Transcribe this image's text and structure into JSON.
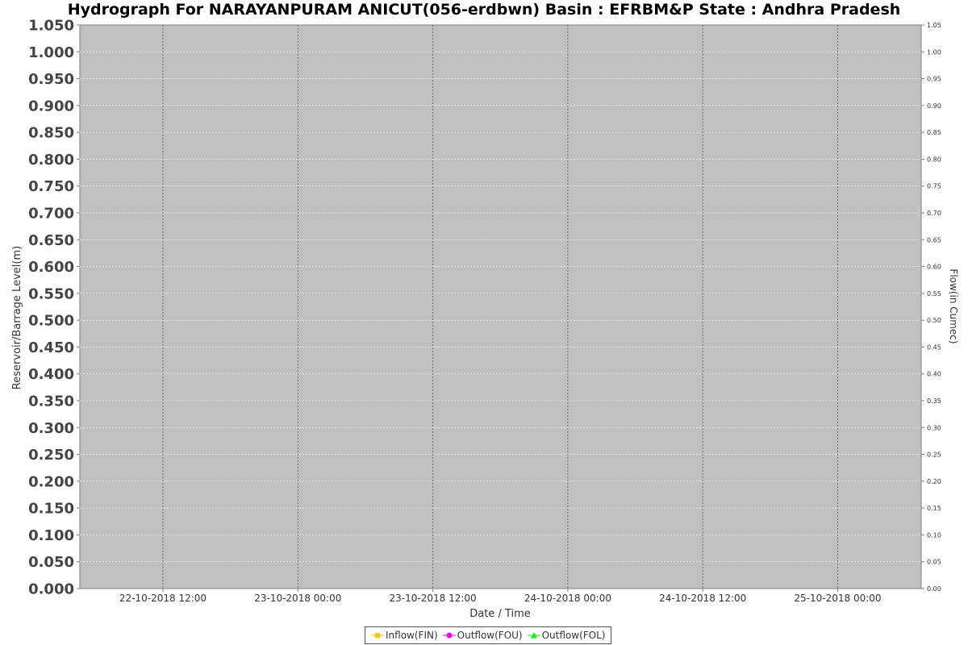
{
  "chart_data": {
    "type": "line",
    "title": "Hydrograph For  NARAYANPURAM ANICUT(056-erdbwn) Basin : EFRBM&P State : Andhra Pradesh",
    "xlabel": "Date / Time",
    "ylabel": "Reservoir/Barrage Level(m)",
    "y2label": "Flow(in Cumec)",
    "x_ticks": [
      "22-10-2018 12:00",
      "23-10-2018 00:00",
      "23-10-2018 12:00",
      "24-10-2018 00:00",
      "24-10-2018 12:00",
      "25-10-2018 00:00"
    ],
    "ylim": [
      0,
      1.05
    ],
    "y_ticks": [
      "0.000",
      "0.050",
      "0.100",
      "0.150",
      "0.200",
      "0.250",
      "0.300",
      "0.350",
      "0.400",
      "0.450",
      "0.500",
      "0.550",
      "0.600",
      "0.650",
      "0.700",
      "0.750",
      "0.800",
      "0.850",
      "0.900",
      "0.950",
      "1.000",
      "1.050"
    ],
    "y2lim": [
      0,
      1.05
    ],
    "y2_ticks": [
      "0.00",
      "0.05",
      "0.10",
      "0.15",
      "0.20",
      "0.25",
      "0.30",
      "0.35",
      "0.40",
      "0.45",
      "0.50",
      "0.55",
      "0.60",
      "0.65",
      "0.70",
      "0.75",
      "0.80",
      "0.85",
      "0.90",
      "0.95",
      "1.00",
      "1.05"
    ],
    "grid": true,
    "legend_position": "bottom",
    "series": [
      {
        "name": "Inflow(FIN)",
        "color": "#ffc800",
        "marker": "square",
        "values": []
      },
      {
        "name": "Outflow(FOU)",
        "color": "#ff00ff",
        "marker": "circle",
        "values": []
      },
      {
        "name": "Outflow(FOL)",
        "color": "#00ff00",
        "marker": "triangle",
        "values": []
      }
    ],
    "plot_background": "#c0c0c0"
  }
}
